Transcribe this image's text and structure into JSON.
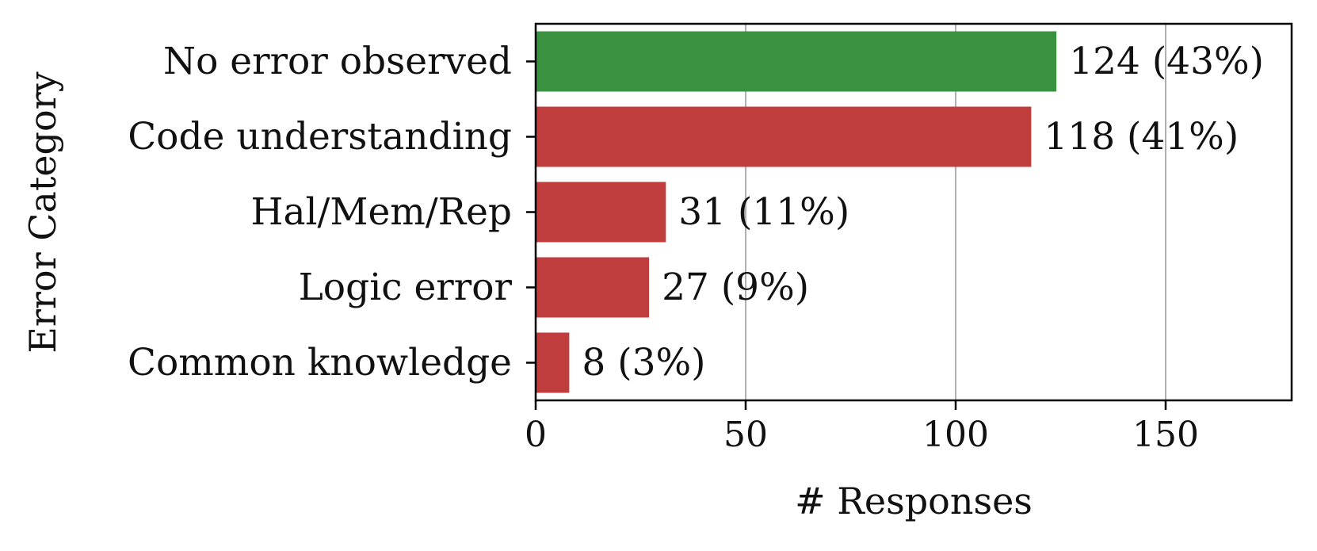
{
  "chart_data": {
    "type": "bar",
    "orientation": "horizontal",
    "title": "",
    "xlabel": "# Responses",
    "ylabel": "Error Category",
    "categories": [
      "No error observed",
      "Code understanding",
      "Hal/Mem/Rep",
      "Logic error",
      "Common knowledge"
    ],
    "values": [
      124,
      118,
      31,
      27,
      8
    ],
    "percentages": [
      43,
      41,
      11,
      9,
      3
    ],
    "data_labels": [
      "124 (43%)",
      "118 (41%)",
      "31 (11%)",
      "27 (9%)",
      "8 (3%)"
    ],
    "bar_colors": [
      "#3a913f",
      "#c03d3e",
      "#c03d3e",
      "#c03d3e",
      "#c03d3e"
    ],
    "xlim": [
      0,
      180
    ],
    "xticks": [
      0,
      50,
      100,
      150
    ],
    "xtick_labels": [
      "0",
      "50",
      "100",
      "150"
    ],
    "grid": "vertical",
    "grid_color": "#b0b0b0",
    "legend": "none"
  }
}
